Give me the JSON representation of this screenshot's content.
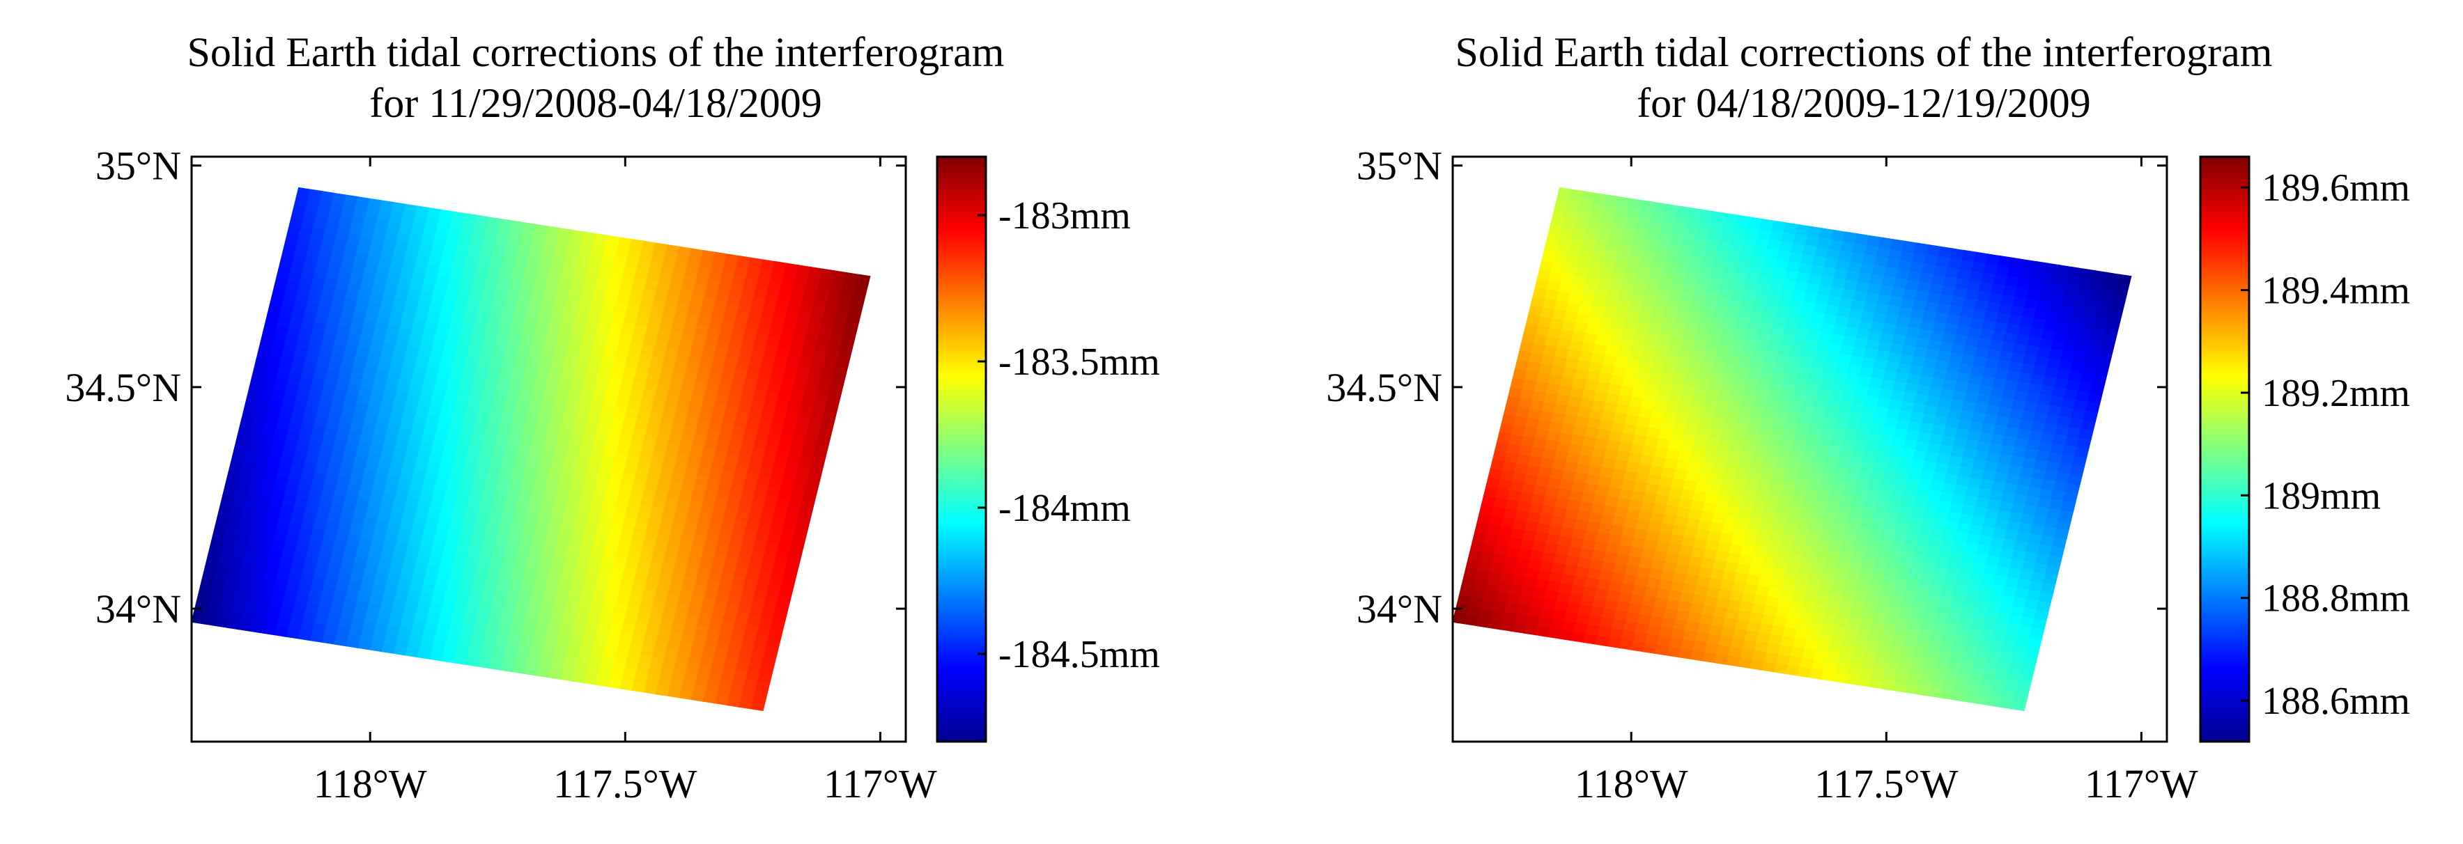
{
  "chart_data": [
    {
      "type": "heatmap",
      "title_line1": "Solid Earth tidal corrections of the interferogram",
      "title_line2": "for 11/29/2008-04/18/2009",
      "xlabel": "",
      "ylabel": "",
      "xlim": [
        -118.35,
        -116.95
      ],
      "ylim": [
        33.7,
        35.02
      ],
      "x_ticks": [
        -118,
        -117.5,
        -117
      ],
      "x_tick_labels": [
        "118°W",
        "117.5°W",
        "117°W"
      ],
      "y_ticks": [
        34,
        34.5,
        35
      ],
      "y_tick_labels": [
        "34°N",
        "34.5°N",
        "35°N"
      ],
      "footprint_corners": [
        {
          "corner": "top-left",
          "lon": -118.14,
          "lat": 34.95
        },
        {
          "corner": "top-right",
          "lon": -117.02,
          "lat": 34.75
        },
        {
          "corner": "bottom-right",
          "lon": -117.23,
          "lat": 33.77
        },
        {
          "corner": "bottom-left",
          "lon": -118.35,
          "lat": 33.97
        }
      ],
      "gradient_direction": "west-to-east",
      "colormap": "jet",
      "color_range": [
        -184.8,
        -182.8
      ],
      "value_west": -184.8,
      "value_east": -182.8,
      "colorbar_ticks": [
        -183,
        -183.5,
        -184,
        -184.5
      ],
      "colorbar_tick_labels": [
        "-183mm",
        "-183.5mm",
        "-184mm",
        "-184.5mm"
      ],
      "colorbar_unit": "mm"
    },
    {
      "type": "heatmap",
      "title_line1": "Solid Earth tidal corrections of the interferogram",
      "title_line2": "for 04/18/2009-12/19/2009",
      "xlabel": "",
      "ylabel": "",
      "xlim": [
        -118.35,
        -116.95
      ],
      "ylim": [
        33.7,
        35.02
      ],
      "x_ticks": [
        -118,
        -117.5,
        -117
      ],
      "x_tick_labels": [
        "118°W",
        "117.5°W",
        "117°W"
      ],
      "y_ticks": [
        34,
        34.5,
        35
      ],
      "y_tick_labels": [
        "34°N",
        "34.5°N",
        "35°N"
      ],
      "footprint_corners": [
        {
          "corner": "top-left",
          "lon": -118.14,
          "lat": 34.95
        },
        {
          "corner": "top-right",
          "lon": -117.02,
          "lat": 34.75
        },
        {
          "corner": "bottom-right",
          "lon": -117.23,
          "lat": 33.77
        },
        {
          "corner": "bottom-left",
          "lon": -118.35,
          "lat": 33.97
        }
      ],
      "gradient_direction": "southwest-to-northeast",
      "colormap": "jet",
      "color_range": [
        188.52,
        189.66
      ],
      "value_southwest": 189.66,
      "value_northeast": 188.52,
      "colorbar_ticks": [
        189.6,
        189.4,
        189.2,
        189,
        188.8,
        188.6
      ],
      "colorbar_tick_labels": [
        "189.6mm",
        "189.4mm",
        "189.2mm",
        "189mm",
        "188.8mm",
        "188.6mm"
      ],
      "colorbar_unit": "mm"
    }
  ]
}
